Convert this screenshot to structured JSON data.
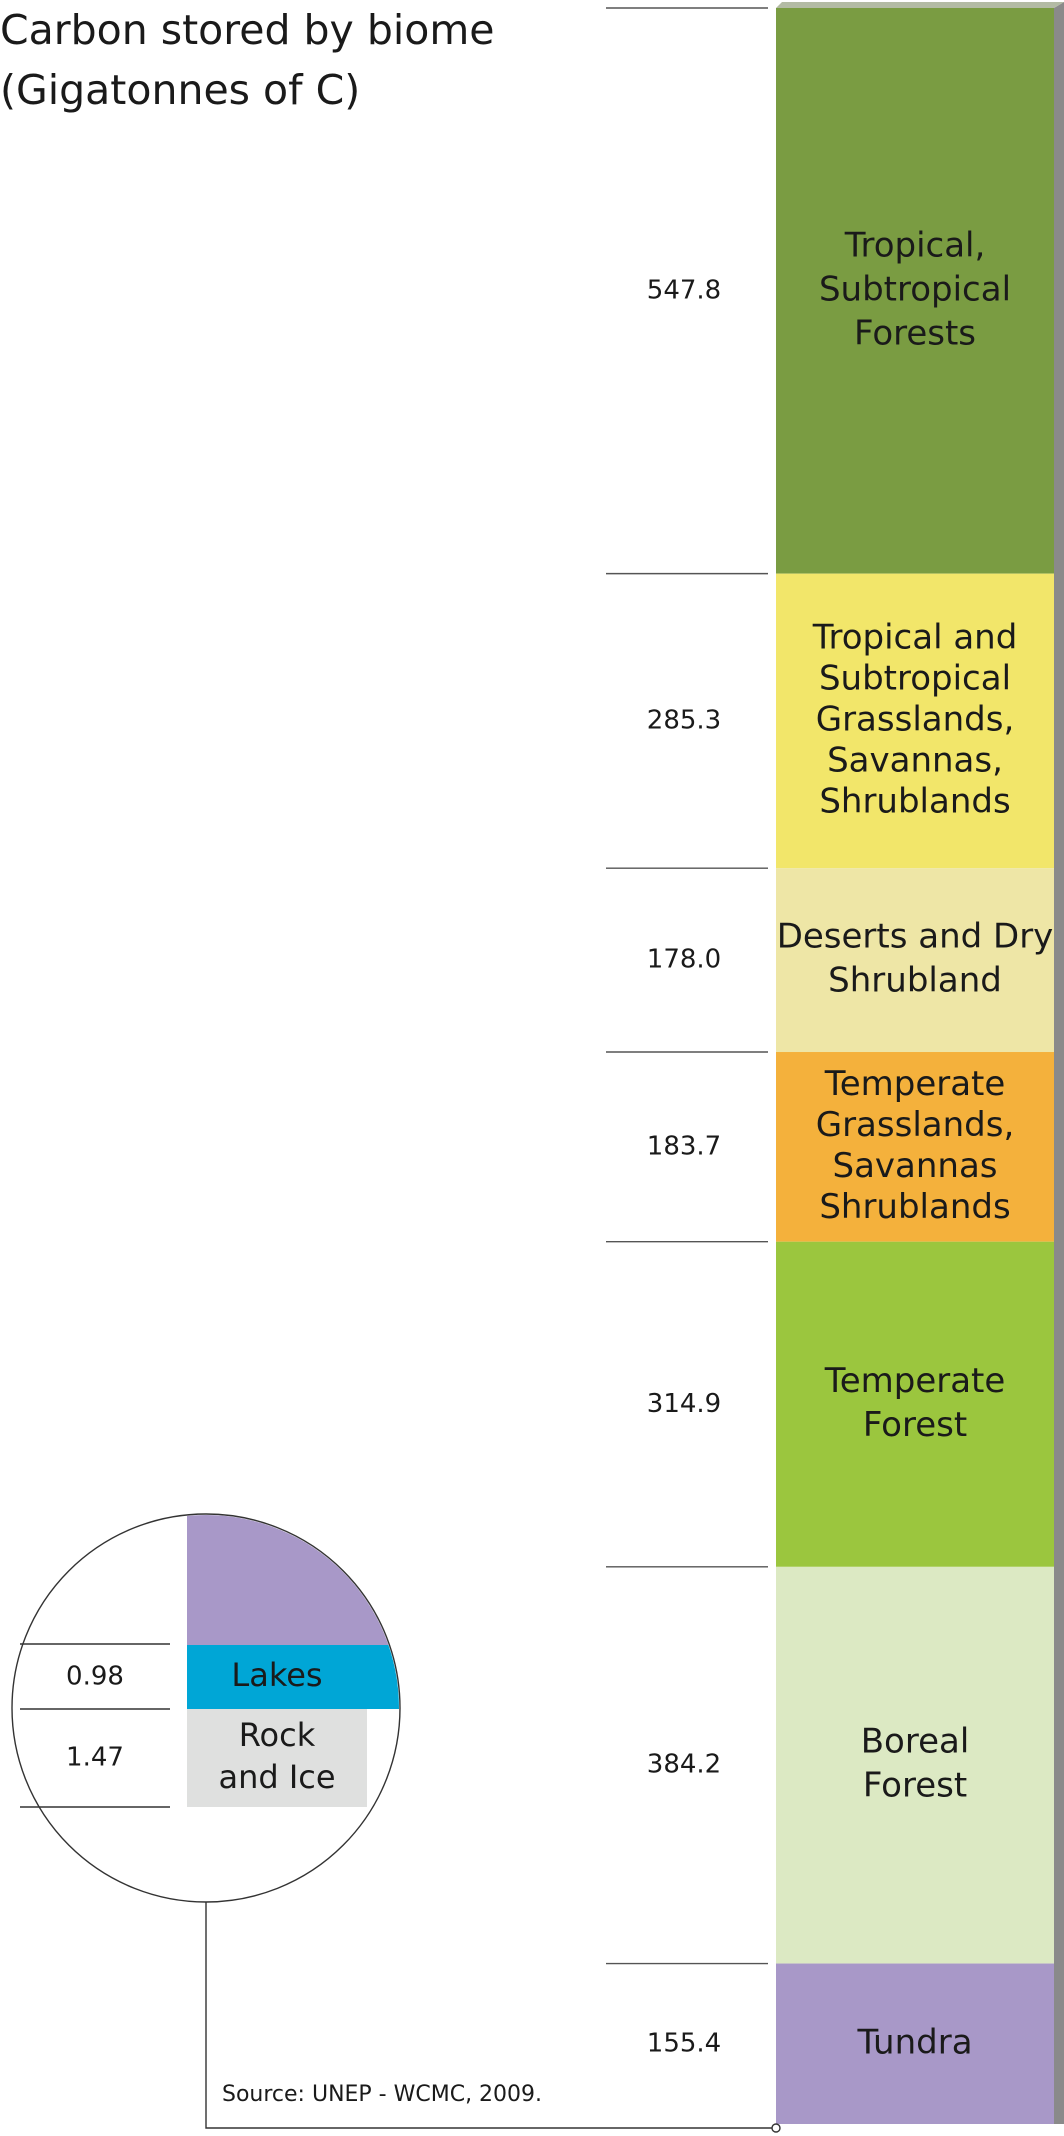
{
  "chart_data": {
    "type": "bar",
    "title": "Carbon stored by biome",
    "subtitle": "(Gigatonnes of C)",
    "source": "Source: UNEP - WCMC, 2009.",
    "orientation": "stacked-vertical",
    "segments": [
      {
        "label": [
          "Tropical,",
          "Subtropical",
          "Forests"
        ],
        "value": 547.8,
        "value_text": "547.8",
        "color": "#7a9c42"
      },
      {
        "label": [
          "Tropical and",
          "Subtropical",
          "Grasslands,",
          "Savannas,",
          "Shrublands"
        ],
        "value": 285.3,
        "value_text": "285.3",
        "color": "#f2e66a"
      },
      {
        "label": [
          "Deserts and Dry",
          "Shrubland"
        ],
        "value": 178.0,
        "value_text": "178.0",
        "color": "#eee6a6"
      },
      {
        "label": [
          "Temperate",
          "Grasslands,",
          "Savannas",
          "Shrublands"
        ],
        "value": 183.7,
        "value_text": "183.7",
        "color": "#f4b13c"
      },
      {
        "label": [
          "Temperate",
          "Forest"
        ],
        "value": 314.9,
        "value_text": "314.9",
        "color": "#9bc63e"
      },
      {
        "label": [
          "Boreal",
          "Forest"
        ],
        "value": 384.2,
        "value_text": "384.2",
        "color": "#dce9c3"
      },
      {
        "label": [
          "Tundra"
        ],
        "value": 155.4,
        "value_text": "155.4",
        "color": "#a898c8"
      }
    ],
    "inset": {
      "segments": [
        {
          "label": [
            "Lakes"
          ],
          "value": 0.98,
          "value_text": "0.98",
          "color": "#00a6d6"
        },
        {
          "label": [
            "Rock",
            "and Ice"
          ],
          "value": 1.47,
          "value_text": "1.47",
          "color": "#dfe0df"
        }
      ],
      "tundra_wedge_color": "#a898c8"
    }
  }
}
